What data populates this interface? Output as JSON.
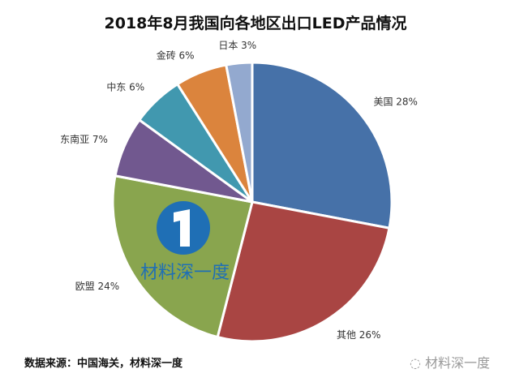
{
  "chart_data": {
    "type": "pie",
    "title": "2018年8月我国向各地区出口LED产品情况",
    "start": "top",
    "direction": "clockwise",
    "slices": [
      {
        "label": "美国",
        "value": 28,
        "text": "美国 28%",
        "color": "#4671a8"
      },
      {
        "label": "其他",
        "value": 26,
        "text": "其他 26%",
        "color": "#a94543"
      },
      {
        "label": "欧盟",
        "value": 24,
        "text": "欧盟 24%",
        "color": "#89a54e"
      },
      {
        "label": "东南亚",
        "value": 7,
        "text": "东南亚 7%",
        "color": "#71588f"
      },
      {
        "label": "中东",
        "value": 6,
        "text": "中东 6%",
        "color": "#4198af"
      },
      {
        "label": "金砖",
        "value": 6,
        "text": "金砖 6%",
        "color": "#db843d"
      },
      {
        "label": "日本",
        "value": 3,
        "text": "日本 3%",
        "color": "#93a9cf"
      }
    ]
  },
  "footer": {
    "source": "数据来源：中国海关，材料深一度",
    "watermark": "材料深一度"
  },
  "logo": {
    "text": "材料深一度",
    "color": "#1f6fb5"
  }
}
